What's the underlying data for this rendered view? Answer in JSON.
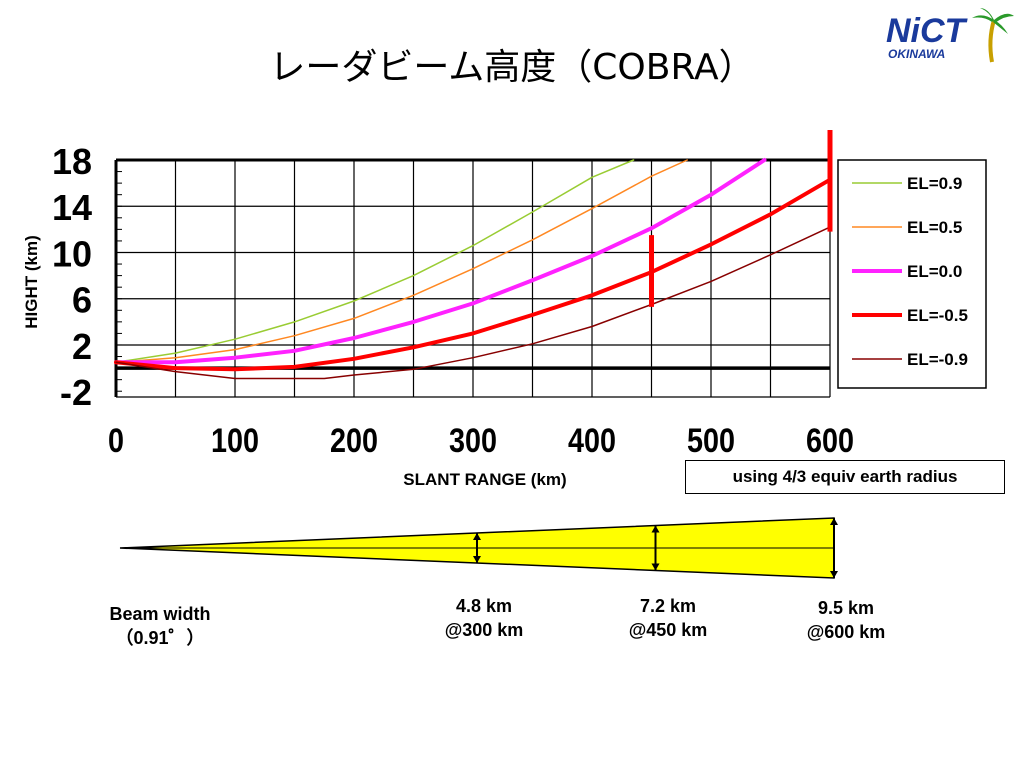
{
  "title": "レーダビーム高度（COBRA）",
  "logo": {
    "text": "NiCT",
    "sub": "OKINAWA"
  },
  "chart_data": {
    "type": "line",
    "xlabel": "SLANT RANGE (km)",
    "ylabel": "HIGHT (km)",
    "xlim": [
      0,
      600
    ],
    "ylim": [
      -2,
      18
    ],
    "xticks": [
      "0",
      "100",
      "200",
      "300",
      "400",
      "500",
      "600"
    ],
    "yticks": [
      "-2",
      "2",
      "6",
      "10",
      "14",
      "18"
    ],
    "grid": true,
    "legend_position": "right",
    "series": [
      {
        "name": "EL=0.9",
        "color": "#99cc33",
        "width": 1.5,
        "x": [
          0,
          50,
          100,
          150,
          200,
          250,
          300,
          350,
          400,
          435
        ],
        "y": [
          0.5,
          1.3,
          2.5,
          4.0,
          5.8,
          8.0,
          10.6,
          13.5,
          16.5,
          18.0
        ]
      },
      {
        "name": "EL=0.5",
        "color": "#ff8822",
        "width": 1.5,
        "x": [
          0,
          50,
          100,
          150,
          200,
          250,
          300,
          350,
          400,
          450,
          480
        ],
        "y": [
          0.5,
          0.9,
          1.6,
          2.8,
          4.3,
          6.3,
          8.6,
          11.1,
          13.8,
          16.6,
          18.0
        ]
      },
      {
        "name": "EL=0.0",
        "color": "#ff22ff",
        "width": 4,
        "x": [
          0,
          50,
          100,
          150,
          200,
          250,
          300,
          350,
          400,
          450,
          500,
          545
        ],
        "y": [
          0.5,
          0.5,
          0.9,
          1.5,
          2.6,
          4.0,
          5.6,
          7.6,
          9.7,
          12.1,
          15.0,
          18.0
        ]
      },
      {
        "name": "EL=-0.5",
        "color": "#ff0000",
        "width": 4,
        "x": [
          0,
          50,
          100,
          150,
          200,
          250,
          300,
          350,
          400,
          450,
          500,
          550,
          600
        ],
        "y": [
          0.5,
          0.0,
          -0.1,
          0.1,
          0.8,
          1.8,
          3.0,
          4.6,
          6.3,
          8.3,
          10.7,
          13.3,
          16.3
        ]
      },
      {
        "name": "EL=-0.9",
        "color": "#880000",
        "width": 1.5,
        "x": [
          0,
          50,
          100,
          150,
          175,
          200,
          250,
          300,
          350,
          400,
          450,
          500,
          550,
          600
        ],
        "y": [
          0.5,
          -0.3,
          -0.9,
          -0.9,
          -0.9,
          -0.6,
          -0.1,
          0.9,
          2.1,
          3.6,
          5.5,
          7.5,
          9.8,
          12.2
        ]
      }
    ],
    "markers": [
      {
        "x": 450,
        "y_from": 5.3,
        "y_to": 11.5,
        "color": "#ff0000"
      },
      {
        "x": 600,
        "y_from": 11.8,
        "y_to": 20.6,
        "color": "#ff0000"
      }
    ]
  },
  "note": "using 4/3 equiv earth radius",
  "beam": {
    "width_label": "Beam width",
    "width_value": "（0.91゜）",
    "fill_color": "#ffff00",
    "points": [
      {
        "range_km": 300,
        "size": "4.8 km",
        "at": "@300 km"
      },
      {
        "range_km": 450,
        "size": "7.2 km",
        "at": "@450 km"
      },
      {
        "range_km": 600,
        "size": "9.5 km",
        "at": "@600 km"
      }
    ]
  }
}
